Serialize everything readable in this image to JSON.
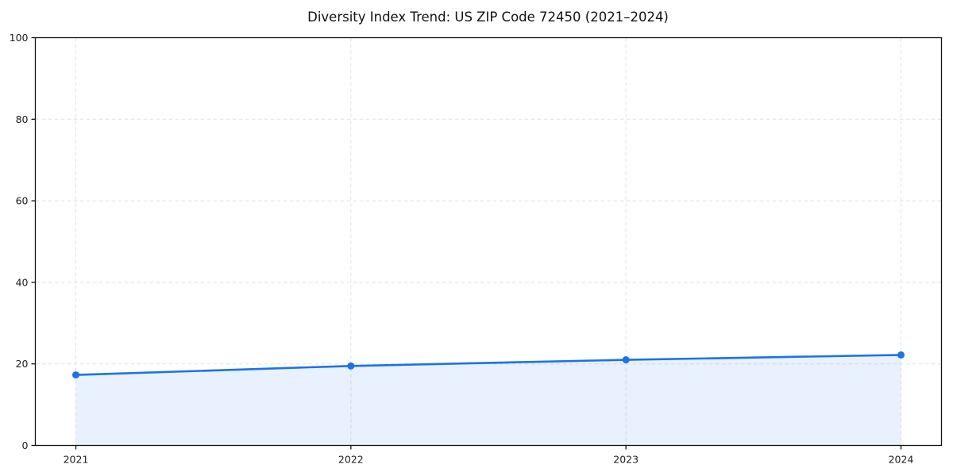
{
  "page": {
    "background": "#ffffff"
  },
  "chart_data": {
    "type": "line",
    "title": "Diversity Index Trend: US ZIP Code 72450 (2021–2024)",
    "x": [
      "2021",
      "2022",
      "2023",
      "2024"
    ],
    "series": [
      {
        "name": "Diversity Index",
        "values": [
          17.3,
          19.5,
          21.0,
          22.2
        ]
      }
    ],
    "xlabel": "",
    "ylabel": "",
    "ylim": [
      0,
      100
    ],
    "yticks": [
      0,
      20,
      40,
      60,
      80,
      100
    ],
    "grid": true,
    "grid_style": "dashed",
    "legend": "none",
    "area_fill": true,
    "marker": "circle",
    "colors": {
      "line": "#1a73e8",
      "marker": "#1a73e8",
      "fill": "#1a73e8",
      "fill_opacity": 0.1,
      "grid": "#e4e4e4",
      "spine": "#111111",
      "text": "#1c1c1c",
      "title": "#111111"
    }
  }
}
